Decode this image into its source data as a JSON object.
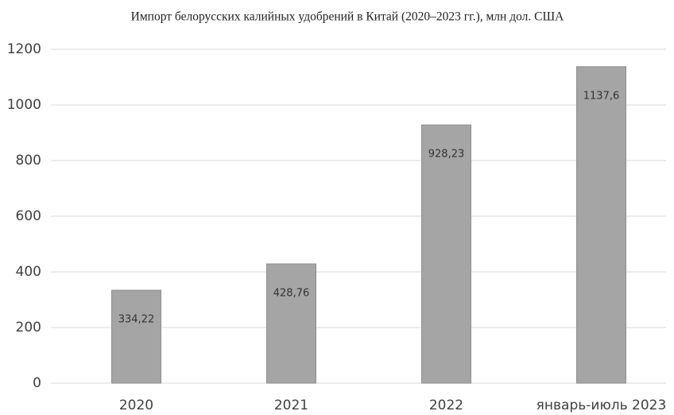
{
  "chart_data": {
    "type": "bar",
    "title": "Импорт белорусских калийных удобрений в Китай (2020–2023 гг.), млн дол. США",
    "categories": [
      "2020",
      "2021",
      "2022",
      "январь-июль 2023"
    ],
    "values": [
      334.22,
      428.76,
      928.23,
      1137.6
    ],
    "value_labels": [
      "334,22",
      "428,76",
      "928,23",
      "1137,6"
    ],
    "color": "#a5a5a5",
    "ylim": [
      0,
      1200
    ],
    "yticks": [
      0,
      200,
      400,
      600,
      800,
      1000,
      1200
    ],
    "grid": true
  }
}
